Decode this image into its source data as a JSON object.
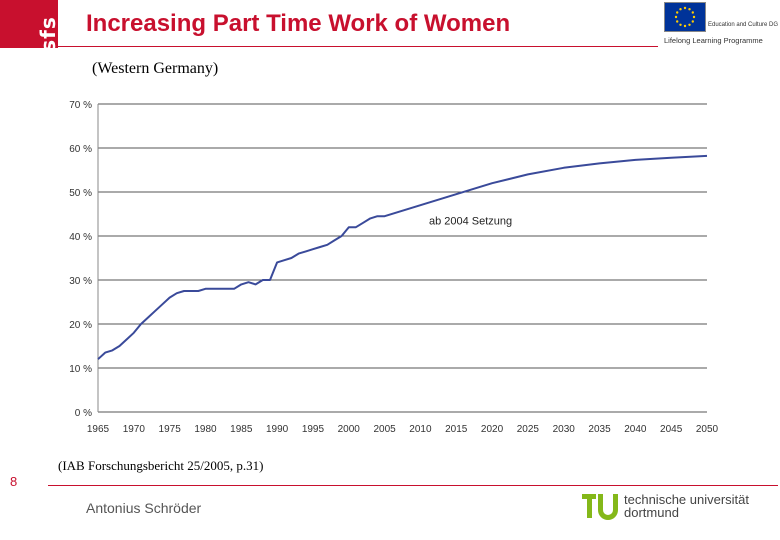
{
  "header": {
    "brand": "sfs",
    "title": "Increasing Part Time Work of Women",
    "eu_logo": {
      "icon": "eu-flag-icon",
      "program_label": "Education and Culture DG",
      "program_name": "Lifelong Learning Programme"
    }
  },
  "subtitle": "(Western Germany)",
  "source": "(IAB Forschungsbericht 25/2005, p.31)",
  "page_number": "8",
  "author": "Antonius Schröder",
  "tu_logo": {
    "icon": "tu-logo-icon",
    "line1": "technische universität",
    "line2": "dortmund"
  },
  "colors": {
    "accent": "#c8102e",
    "series": "#3a4a9a",
    "grid": "#555555"
  },
  "chart_data": {
    "type": "line",
    "title": "",
    "xlabel": "",
    "ylabel": "",
    "xlim": [
      1965,
      2050
    ],
    "ylim": [
      0,
      70
    ],
    "y_ticks": [
      "0 %",
      "10 %",
      "20 %",
      "30 %",
      "40 %",
      "50 %",
      "60 %",
      "70 %"
    ],
    "x_ticks": [
      "1965",
      "1970",
      "1975",
      "1980",
      "1985",
      "1990",
      "1995",
      "2000",
      "2005",
      "2010",
      "2015",
      "2020",
      "2025",
      "2030",
      "2035",
      "2040",
      "2045",
      "2050"
    ],
    "grid": true,
    "annotation": {
      "text": "ab 2004 Setzung",
      "x": 2017,
      "y": 43.5
    },
    "series": [
      {
        "x": [
          1965,
          1966,
          1967,
          1968,
          1969,
          1970,
          1971,
          1972,
          1973,
          1974,
          1975,
          1976,
          1977,
          1978,
          1979,
          1980,
          1981,
          1982,
          1983,
          1984,
          1985,
          1986,
          1987,
          1988,
          1989,
          1990,
          1991,
          1992,
          1993,
          1994,
          1995,
          1996,
          1997,
          1998,
          1999,
          2000,
          2001,
          2002,
          2003,
          2004,
          2005,
          2010,
          2015,
          2020,
          2025,
          2030,
          2035,
          2040,
          2045,
          2050
        ],
        "values": [
          12,
          13.5,
          14,
          15,
          16.5,
          18,
          20,
          21.5,
          23,
          24.5,
          26,
          27,
          27.5,
          27.5,
          27.5,
          28,
          28,
          28,
          28,
          28,
          29,
          29.5,
          29,
          30,
          30,
          34,
          34.5,
          35,
          36,
          36.5,
          37,
          37.5,
          38,
          39,
          40,
          42,
          42,
          43,
          44,
          44.5,
          44.5,
          47,
          49.5,
          52,
          54,
          55.5,
          56.5,
          57.3,
          57.8,
          58.2
        ]
      }
    ]
  }
}
